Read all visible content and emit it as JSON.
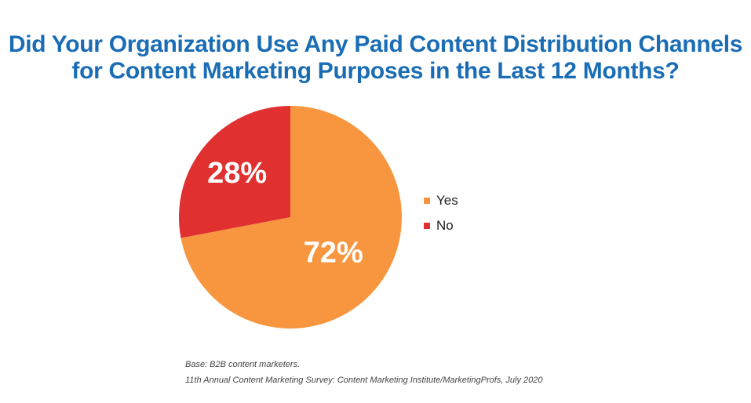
{
  "title": {
    "line1": "Did Your Organization Use Any Paid Content Distribution Channels",
    "line2": "for Content Marketing Purposes in the Last 12 Months?"
  },
  "chart_data": {
    "type": "pie",
    "title": "Did Your Organization Use Any Paid Content Distribution Channels for Content Marketing Purposes in the Last 12 Months?",
    "categories": [
      "Yes",
      "No"
    ],
    "values": [
      72,
      28
    ],
    "data_labels": [
      "72%",
      "28%"
    ],
    "colors": [
      "#f7963e",
      "#e0302f"
    ],
    "legend_placement": "right"
  },
  "legend": {
    "items": [
      {
        "label": "Yes",
        "color": "#f7963e"
      },
      {
        "label": "No",
        "color": "#e0302f"
      }
    ]
  },
  "footnote": {
    "base": "Base: B2B content marketers.",
    "source": "11th Annual Content Marketing Survey: Content Marketing Institute/MarketingProfs, July 2020"
  }
}
